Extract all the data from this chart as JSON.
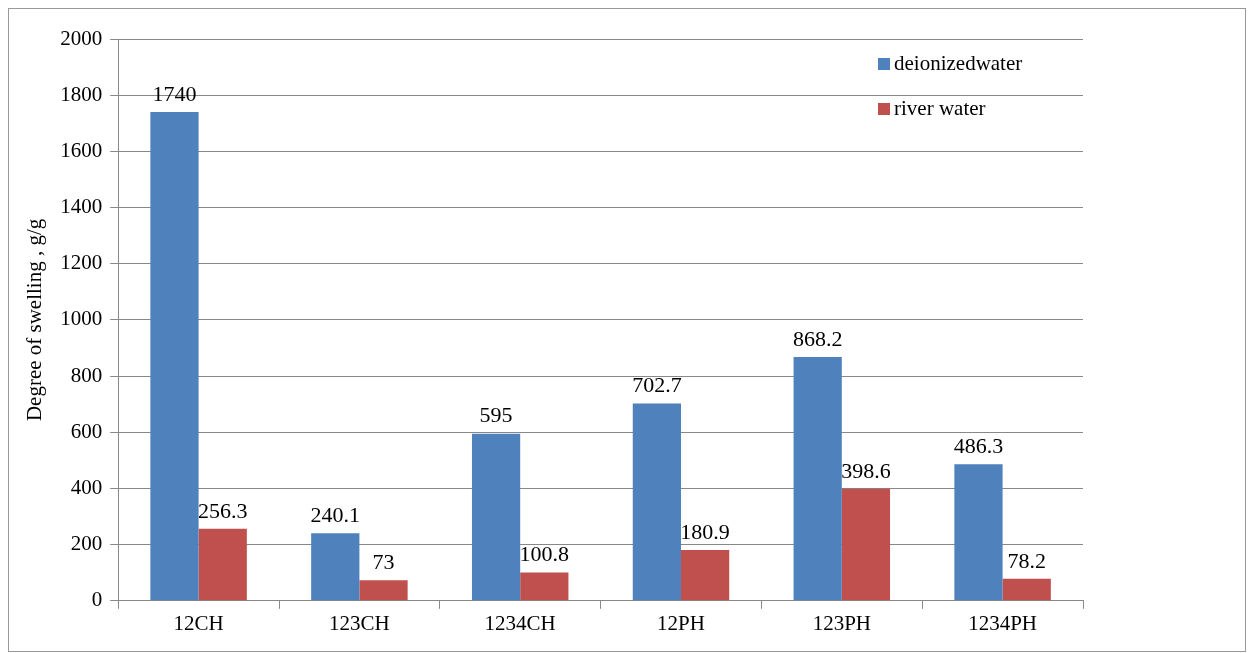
{
  "chart_data": {
    "type": "bar",
    "ylabel": "Degree of swelling , g/g",
    "categories": [
      "12CH",
      "123CH",
      "1234CH",
      "12PH",
      "123PH",
      "1234PH"
    ],
    "series": [
      {
        "name": "deionizedwater",
        "color": "#4f81bd",
        "values": [
          1740,
          240.1,
          595,
          702.7,
          868.2,
          486.3
        ]
      },
      {
        "name": "river water",
        "color": "#c0504d",
        "values": [
          256.3,
          73,
          100.8,
          180.9,
          398.6,
          78.2
        ]
      }
    ],
    "ylim": [
      0,
      2000
    ],
    "yticks": [
      0,
      200,
      400,
      600,
      800,
      1000,
      1200,
      1400,
      1600,
      1800,
      2000
    ],
    "grid": "y",
    "legend": "top right",
    "data_labels": true
  }
}
